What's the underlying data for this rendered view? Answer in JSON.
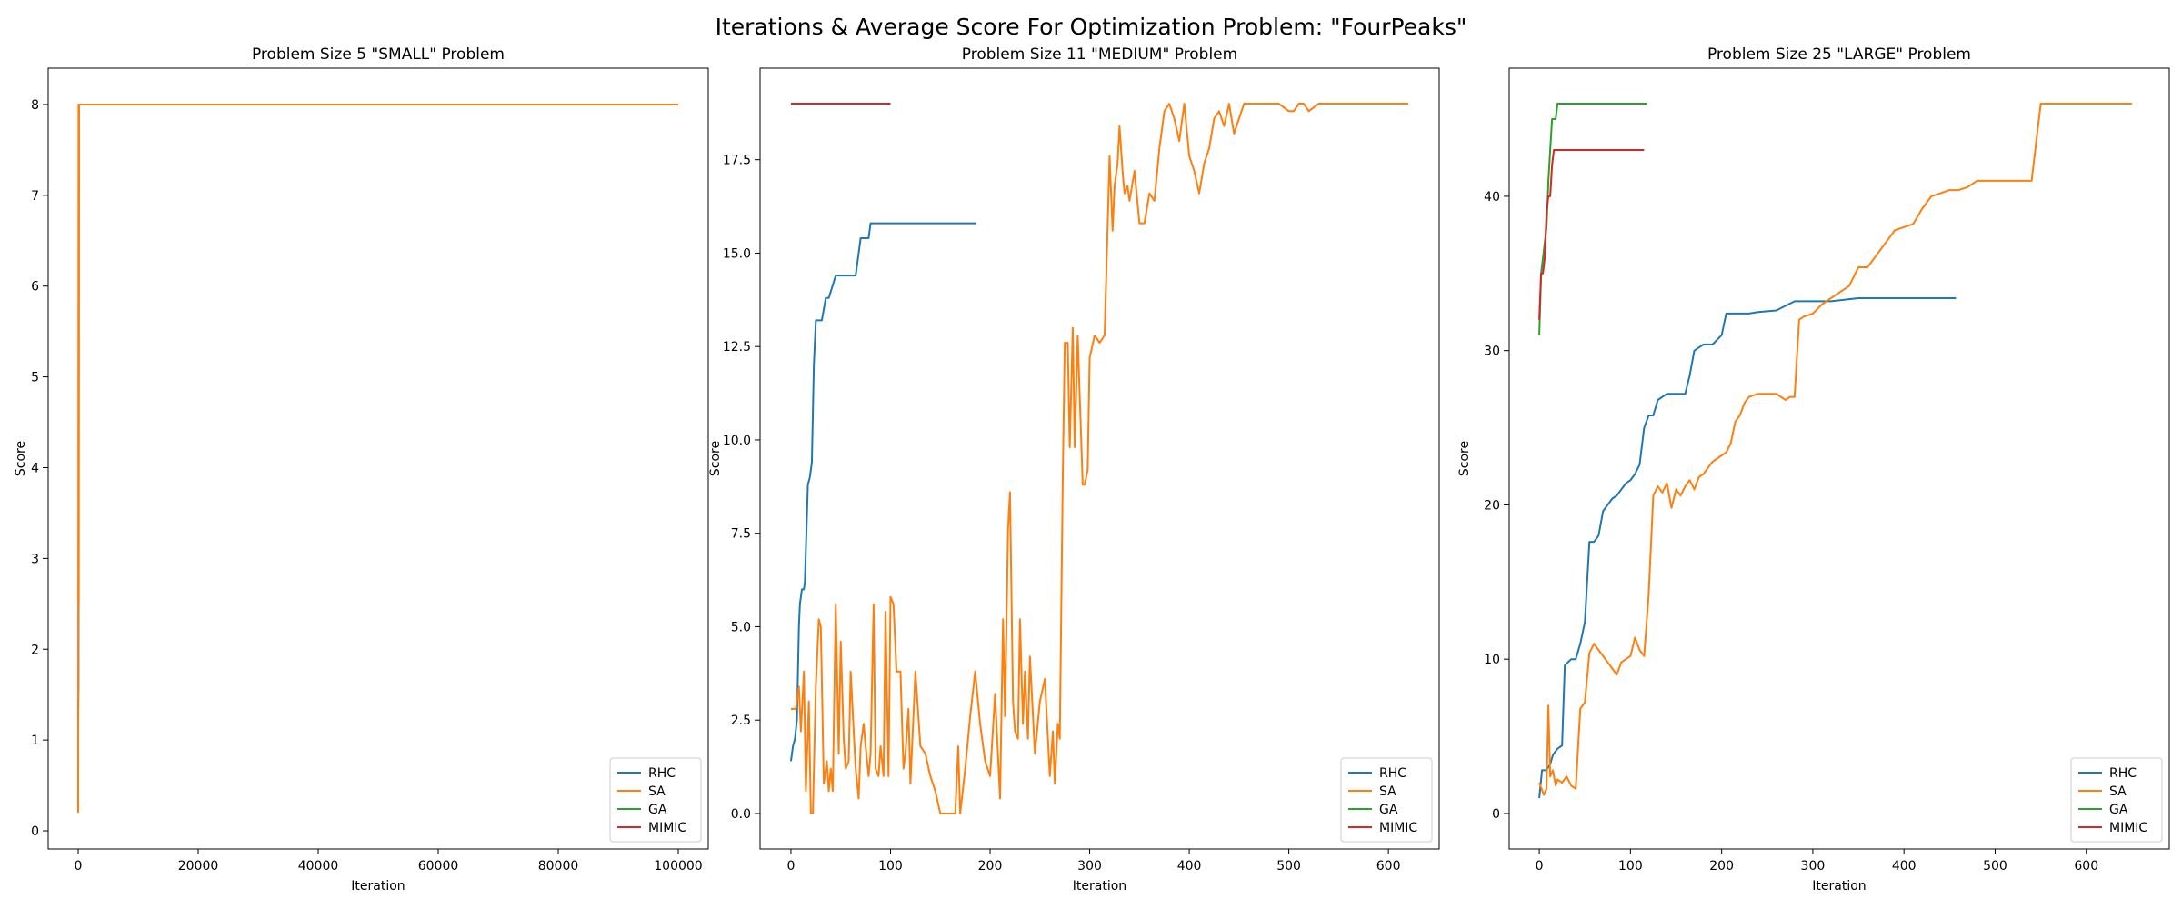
{
  "figure": {
    "title": "Iterations & Average Score For Optimization Problem: \"FourPeaks\""
  },
  "colors": {
    "RHC": "#1f77b4",
    "SA": "#ff7f0e",
    "GA": "#2ca02c",
    "MIMIC": "#d62728"
  },
  "chart_data": [
    {
      "type": "line",
      "title": "Problem Size 5 \"SMALL\" Problem",
      "xlabel": "Iteration",
      "ylabel": "Score",
      "xlim": [
        -5000,
        105000
      ],
      "ylim": [
        -0.2,
        8.4
      ],
      "xticks": [
        0,
        20000,
        40000,
        60000,
        80000,
        100000
      ],
      "yticks": [
        0,
        1,
        2,
        3,
        4,
        5,
        6,
        7,
        8
      ],
      "ytick_decimals": 0,
      "legend": {
        "position": "lower-right",
        "entries": [
          "RHC",
          "SA",
          "GA",
          "MIMIC"
        ]
      },
      "series": [
        {
          "name": "RHC",
          "x": [
            0,
            50,
            120,
            200,
            400
          ],
          "y": [
            1.2,
            1.6,
            8,
            8,
            8
          ]
        },
        {
          "name": "SA",
          "x": [
            0,
            10,
            30,
            60,
            100,
            150,
            200,
            100000
          ],
          "y": [
            0.2,
            2.0,
            5.0,
            8,
            2.5,
            8,
            8,
            8
          ]
        },
        {
          "name": "GA",
          "x": [
            0,
            10,
            30
          ],
          "y": [
            8,
            8,
            8
          ]
        },
        {
          "name": "MIMIC",
          "x": [
            0,
            10,
            30
          ],
          "y": [
            8,
            8,
            8
          ]
        }
      ]
    },
    {
      "type": "line",
      "title": "Problem Size 11 \"MEDIUM\" Problem",
      "xlabel": "Iteration",
      "ylabel": "Score",
      "xlim": [
        -31,
        651
      ],
      "ylim": [
        -0.95,
        19.95
      ],
      "xticks": [
        0,
        100,
        200,
        300,
        400,
        500,
        600
      ],
      "yticks": [
        0.0,
        2.5,
        5.0,
        7.5,
        10.0,
        12.5,
        15.0,
        17.5
      ],
      "ytick_decimals": 1,
      "legend": {
        "position": "lower-right",
        "entries": [
          "RHC",
          "SA",
          "GA",
          "MIMIC"
        ]
      },
      "series": [
        {
          "name": "RHC",
          "x": [
            0,
            2,
            4,
            6,
            8,
            9,
            11,
            13,
            14,
            17,
            19,
            21,
            23,
            25,
            26,
            28,
            31,
            35,
            38,
            45,
            50,
            65,
            70,
            73,
            78,
            80,
            85,
            90,
            100,
            150,
            186
          ],
          "y": [
            1.4,
            1.8,
            2.0,
            2.5,
            5.0,
            5.6,
            6.0,
            6.0,
            6.2,
            8.8,
            9.0,
            9.4,
            12.0,
            13.2,
            13.2,
            13.2,
            13.2,
            13.8,
            13.8,
            14.4,
            14.4,
            14.4,
            15.4,
            15.4,
            15.4,
            15.8,
            15.8,
            15.8,
            15.8,
            15.8,
            15.8
          ]
        },
        {
          "name": "SA",
          "x": [
            0,
            5,
            8,
            10,
            13,
            15,
            18,
            20,
            22,
            25,
            28,
            30,
            33,
            36,
            38,
            40,
            42,
            45,
            48,
            50,
            53,
            55,
            58,
            60,
            63,
            65,
            68,
            70,
            73,
            75,
            78,
            80,
            83,
            85,
            88,
            90,
            93,
            95,
            98,
            100,
            103,
            106,
            110,
            113,
            115,
            118,
            120,
            125,
            130,
            135,
            140,
            145,
            150,
            155,
            160,
            165,
            168,
            170,
            175,
            180,
            185,
            190,
            195,
            200,
            205,
            210,
            213,
            215,
            218,
            220,
            223,
            225,
            228,
            230,
            233,
            235,
            238,
            240,
            245,
            250,
            255,
            260,
            263,
            265,
            268,
            270,
            273,
            275,
            278,
            280,
            283,
            285,
            288,
            290,
            293,
            295,
            298,
            300,
            305,
            310,
            315,
            320,
            323,
            325,
            328,
            330,
            333,
            335,
            338,
            340,
            345,
            350,
            355,
            360,
            365,
            370,
            375,
            380,
            385,
            390,
            395,
            400,
            405,
            410,
            415,
            420,
            425,
            430,
            435,
            440,
            445,
            450,
            455,
            460,
            465,
            470,
            480,
            490,
            500,
            505,
            510,
            515,
            520,
            530,
            540,
            550,
            560,
            580,
            600,
            620
          ],
          "y": [
            2.8,
            2.8,
            3.4,
            2.2,
            3.8,
            0.6,
            3.0,
            0.0,
            0.0,
            3.4,
            5.2,
            5.0,
            0.8,
            1.4,
            0.6,
            1.2,
            0.6,
            5.6,
            1.6,
            4.6,
            2.0,
            1.2,
            1.4,
            3.8,
            2.2,
            1.2,
            0.4,
            1.8,
            2.4,
            1.8,
            1.0,
            1.6,
            5.6,
            1.2,
            1.0,
            1.8,
            1.0,
            5.4,
            1.0,
            5.8,
            5.6,
            3.8,
            3.8,
            1.2,
            1.6,
            2.8,
            0.8,
            3.8,
            1.8,
            1.6,
            1.0,
            0.6,
            0.0,
            0.0,
            0.0,
            0.0,
            1.8,
            0.0,
            1.2,
            2.6,
            3.8,
            2.4,
            1.4,
            1.0,
            3.2,
            0.4,
            5.2,
            2.6,
            7.6,
            8.6,
            3.0,
            2.2,
            2.0,
            5.2,
            2.4,
            3.8,
            2.0,
            4.2,
            1.6,
            3.0,
            3.6,
            1.0,
            2.2,
            0.8,
            2.4,
            2.0,
            9.0,
            12.6,
            12.6,
            9.8,
            13.0,
            9.8,
            12.8,
            11.2,
            8.8,
            8.8,
            9.2,
            12.2,
            12.8,
            12.6,
            12.8,
            17.6,
            15.6,
            16.8,
            17.4,
            18.4,
            17.2,
            16.6,
            16.8,
            16.4,
            17.2,
            15.8,
            15.8,
            16.6,
            16.4,
            17.8,
            18.8,
            19.0,
            18.6,
            18.0,
            19.0,
            17.6,
            17.2,
            16.6,
            17.4,
            17.8,
            18.6,
            18.8,
            18.4,
            19.0,
            18.2,
            18.6,
            19.0,
            19.0,
            19.0,
            19.0,
            19.0,
            19.0,
            18.8,
            18.8,
            19.0,
            19.0,
            18.8,
            19.0,
            19.0,
            19.0,
            19.0,
            19.0,
            19.0,
            19.0
          ]
        },
        {
          "name": "GA",
          "x": [
            0,
            50,
            100
          ],
          "y": [
            19,
            19,
            19
          ]
        },
        {
          "name": "MIMIC",
          "x": [
            0,
            50,
            100
          ],
          "y": [
            19,
            19,
            19
          ]
        }
      ]
    },
    {
      "type": "line",
      "title": "Problem Size 25 \"LARGE\" Problem",
      "xlabel": "Iteration",
      "ylabel": "Score",
      "xlim": [
        -33,
        691
      ],
      "ylim": [
        -2.3,
        48.3
      ],
      "xticks": [
        0,
        100,
        200,
        300,
        400,
        500,
        600
      ],
      "yticks": [
        0,
        10,
        20,
        30,
        40
      ],
      "ytick_decimals": 0,
      "legend": {
        "position": "lower-right",
        "entries": [
          "RHC",
          "SA",
          "GA",
          "MIMIC"
        ]
      },
      "series": [
        {
          "name": "RHC",
          "x": [
            0,
            3,
            8,
            12,
            15,
            20,
            25,
            28,
            35,
            40,
            45,
            50,
            55,
            60,
            65,
            70,
            75,
            80,
            85,
            90,
            95,
            100,
            105,
            110,
            115,
            120,
            125,
            130,
            140,
            150,
            160,
            165,
            170,
            175,
            180,
            190,
            200,
            205,
            210,
            230,
            240,
            260,
            280,
            300,
            320,
            350,
            380,
            400,
            420,
            457
          ],
          "y": [
            1.0,
            2.8,
            2.8,
            3.2,
            3.8,
            4.2,
            4.4,
            9.6,
            10.0,
            10.0,
            11.0,
            12.4,
            17.6,
            17.6,
            18.0,
            19.6,
            20.0,
            20.4,
            20.6,
            21.0,
            21.4,
            21.6,
            22.0,
            22.6,
            25.0,
            25.8,
            25.8,
            26.8,
            27.2,
            27.2,
            27.2,
            28.4,
            30.0,
            30.2,
            30.4,
            30.4,
            31.0,
            32.4,
            32.4,
            32.4,
            32.5,
            32.6,
            33.2,
            33.2,
            33.2,
            33.4,
            33.4,
            33.4,
            33.4,
            33.4
          ]
        },
        {
          "name": "SA",
          "x": [
            0,
            5,
            8,
            10,
            12,
            15,
            18,
            20,
            25,
            30,
            35,
            40,
            45,
            50,
            55,
            60,
            65,
            70,
            75,
            80,
            85,
            90,
            95,
            100,
            105,
            110,
            115,
            120,
            125,
            130,
            135,
            140,
            145,
            150,
            155,
            160,
            165,
            170,
            175,
            180,
            185,
            190,
            195,
            200,
            205,
            210,
            215,
            220,
            225,
            230,
            240,
            250,
            260,
            270,
            275,
            280,
            285,
            290,
            300,
            310,
            320,
            330,
            340,
            350,
            360,
            370,
            380,
            390,
            400,
            410,
            420,
            430,
            440,
            450,
            460,
            470,
            480,
            500,
            520,
            540,
            550,
            555,
            600,
            650
          ],
          "y": [
            2.0,
            1.2,
            1.6,
            7.0,
            2.4,
            2.8,
            1.8,
            2.2,
            2.0,
            2.4,
            1.8,
            1.6,
            6.8,
            7.2,
            10.4,
            11.0,
            10.6,
            10.2,
            9.8,
            9.4,
            9.0,
            9.8,
            10.0,
            10.2,
            11.4,
            10.6,
            10.2,
            14.2,
            20.6,
            21.2,
            20.8,
            21.4,
            19.8,
            21.0,
            20.6,
            21.2,
            21.6,
            21.0,
            21.8,
            22.0,
            22.4,
            22.8,
            23.0,
            23.2,
            23.4,
            24.0,
            25.4,
            25.8,
            26.6,
            27.0,
            27.2,
            27.2,
            27.2,
            26.8,
            27.0,
            27.0,
            32.0,
            32.2,
            32.4,
            33.0,
            33.4,
            33.8,
            34.2,
            35.4,
            35.4,
            36.2,
            37.0,
            37.8,
            38.0,
            38.2,
            39.2,
            40.0,
            40.2,
            40.4,
            40.4,
            40.6,
            41.0,
            41.0,
            41.0,
            41.0,
            46.0,
            46.0,
            46.0,
            46.0
          ]
        },
        {
          "name": "GA",
          "x": [
            0,
            2,
            4,
            6,
            8,
            10,
            12,
            14,
            16,
            18,
            20,
            25,
            30,
            40,
            50,
            118
          ],
          "y": [
            31,
            35,
            36,
            37,
            38,
            41,
            43,
            45,
            45,
            45,
            46,
            46,
            46,
            46,
            46,
            46
          ]
        },
        {
          "name": "MIMIC",
          "x": [
            0,
            2,
            4,
            6,
            8,
            10,
            12,
            14,
            16,
            18,
            20,
            30,
            50,
            80,
            115
          ],
          "y": [
            32,
            35,
            35,
            36,
            39,
            40,
            40,
            42,
            43,
            43,
            43,
            43,
            43,
            43,
            43
          ]
        }
      ]
    }
  ]
}
